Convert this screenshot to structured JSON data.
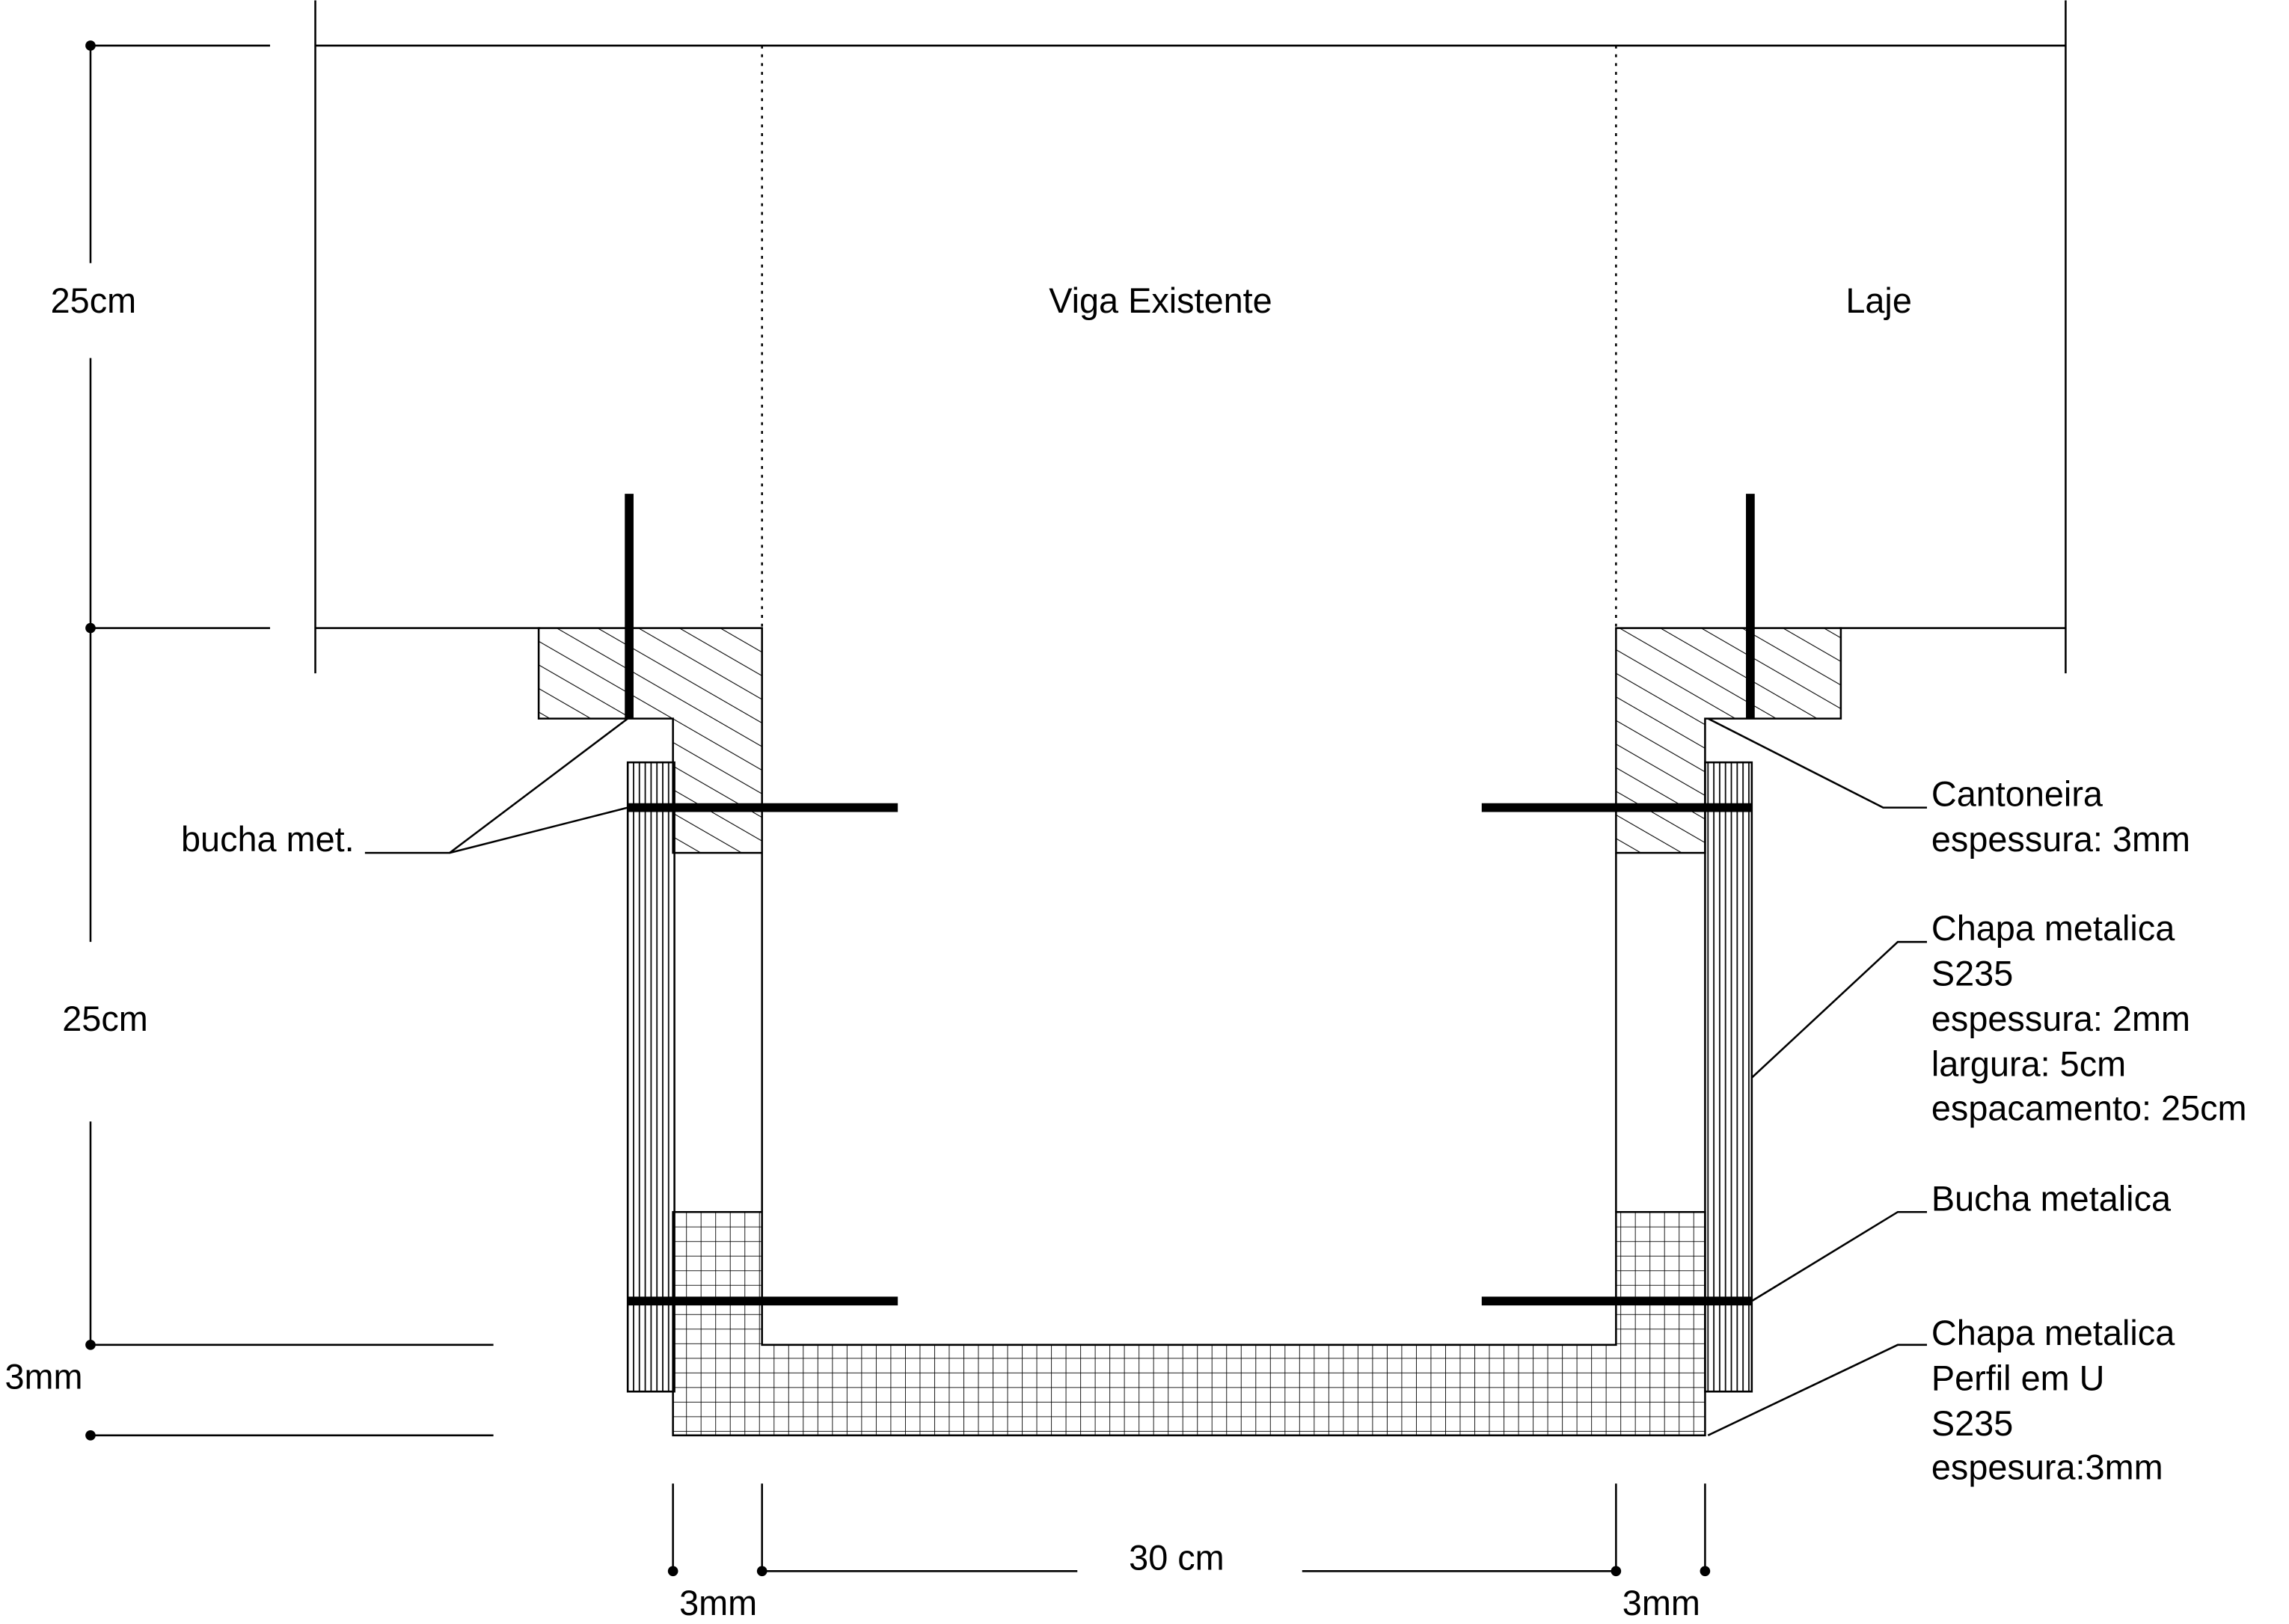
{
  "labels": {
    "viga": "Viga Existente",
    "laje": "Laje",
    "bucha_left": "bucha met.",
    "cantoneira": [
      "Cantoneira",
      "espessura: 3mm"
    ],
    "chapa_vertical": [
      "Chapa metalica",
      "S235",
      "espessura: 2mm",
      "largura: 5cm",
      "espacamento: 25cm"
    ],
    "bucha_right": "Bucha metalica",
    "chapa_u": [
      "Chapa metalica",
      "Perfil em U",
      "S235",
      "espesura:3mm"
    ]
  },
  "dimensions": {
    "top": "25cm",
    "middle": "25cm",
    "bottom": "3mm",
    "width": "30 cm",
    "left_thickness": "3mm",
    "right_thickness": "3mm"
  }
}
